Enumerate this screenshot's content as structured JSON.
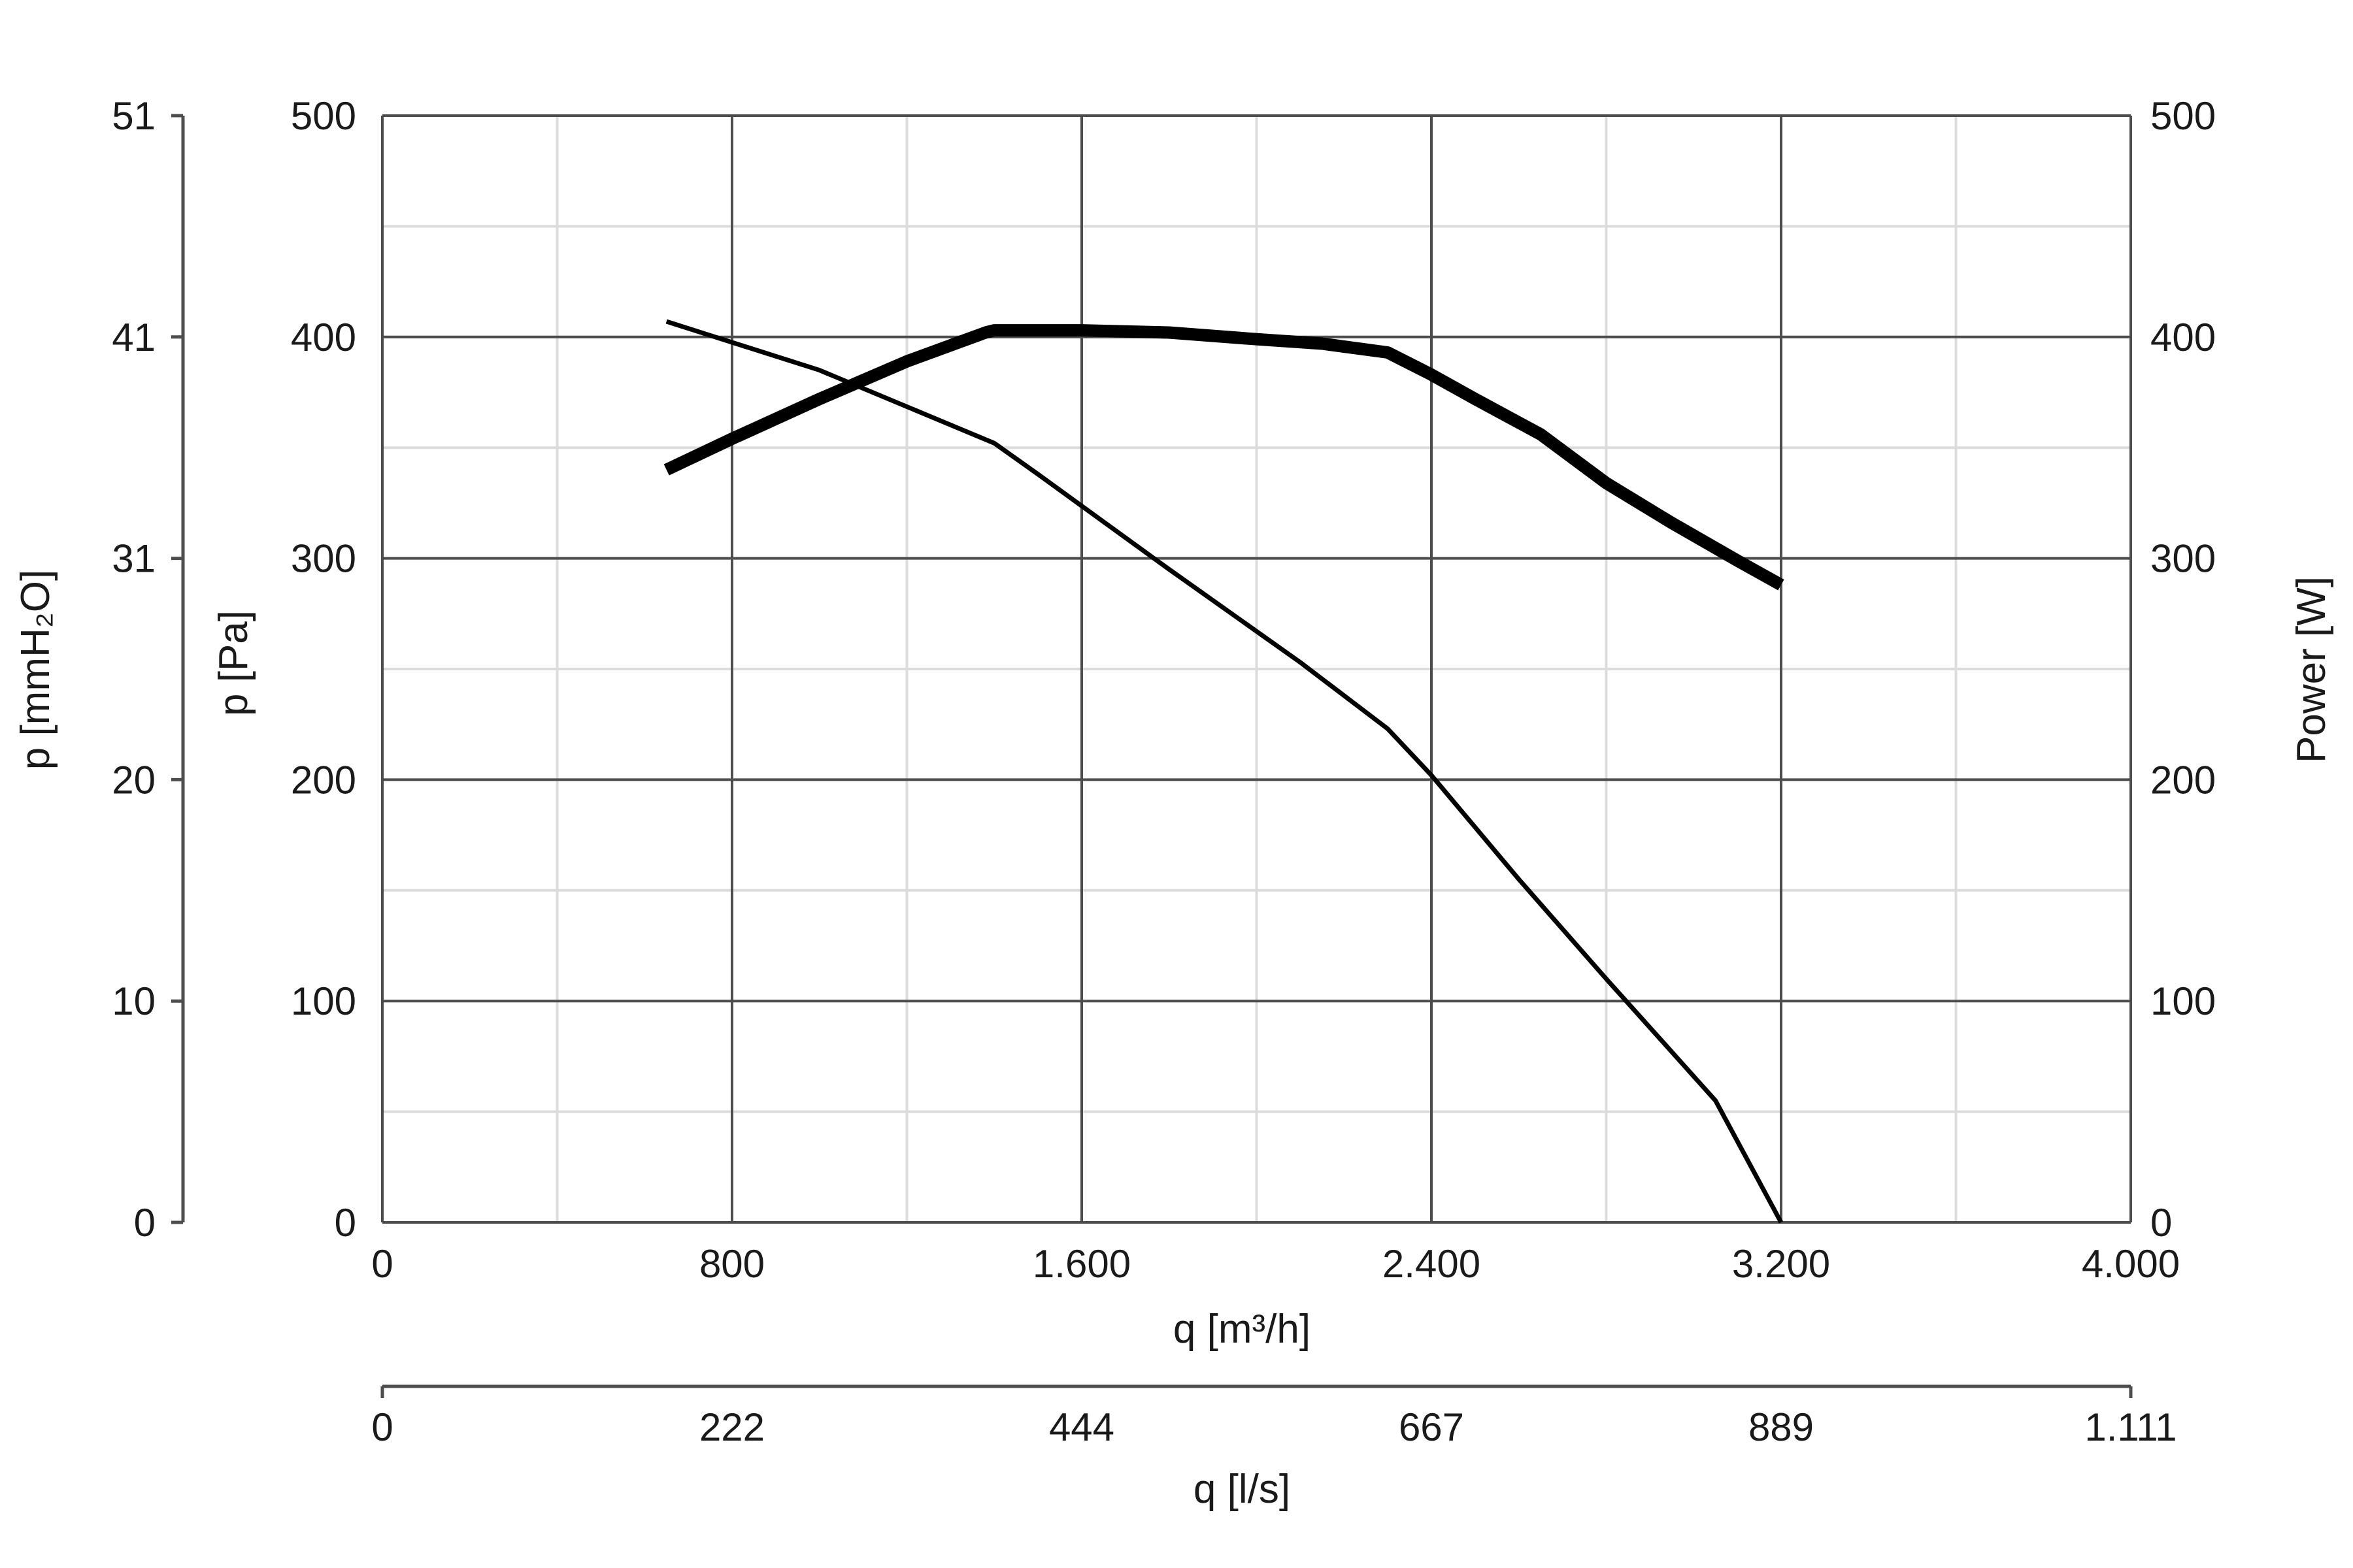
{
  "chart_data": {
    "type": "line",
    "x_axis": {
      "label": "q [m³/h]",
      "range": [
        0,
        4000
      ],
      "ticks": [
        0,
        800,
        1600,
        2400,
        3200,
        4000
      ],
      "tick_labels": [
        "0",
        "800",
        "1.600",
        "2.400",
        "3.200",
        "4.000"
      ],
      "minor_step": 400
    },
    "x_axis_secondary": {
      "label": "q [l/s]",
      "tick_labels": [
        "0",
        "222",
        "444",
        "667",
        "889",
        "1.111"
      ]
    },
    "y_axis_left": {
      "label": "p [Pa]",
      "range": [
        0,
        500
      ],
      "ticks": [
        0,
        100,
        200,
        300,
        400,
        500
      ],
      "tick_labels": [
        "0",
        "100",
        "200",
        "300",
        "400",
        "500"
      ],
      "minor_step": 50
    },
    "y_axis_left_outer": {
      "label": "p [mmH₂O]",
      "tick_labels": [
        "0",
        "10",
        "20",
        "31",
        "41",
        "51"
      ]
    },
    "y_axis_right": {
      "label": "Power [W]",
      "range": [
        0,
        500
      ],
      "tick_labels": [
        "0",
        "100",
        "200",
        "300",
        "400",
        "500"
      ]
    },
    "grid": true,
    "series": [
      {
        "axis": "left",
        "color": "#000000",
        "weight": "thin",
        "points": [
          [
            650,
            407
          ],
          [
            1000,
            385
          ],
          [
            1400,
            352
          ],
          [
            1500,
            338
          ],
          [
            1800,
            295
          ],
          [
            2100,
            253
          ],
          [
            2300,
            223
          ],
          [
            2400,
            202
          ],
          [
            2600,
            155
          ],
          [
            2800,
            110
          ],
          [
            2950,
            77
          ],
          [
            3050,
            55
          ],
          [
            3200,
            0
          ]
        ]
      },
      {
        "axis": "right",
        "color": "#000000",
        "weight": "thick",
        "points": [
          [
            650,
            340
          ],
          [
            800,
            354
          ],
          [
            1000,
            372
          ],
          [
            1200,
            389
          ],
          [
            1380,
            402
          ],
          [
            1400,
            403
          ],
          [
            1600,
            403
          ],
          [
            1800,
            402
          ],
          [
            2000,
            399
          ],
          [
            2150,
            397
          ],
          [
            2300,
            393
          ],
          [
            2400,
            383
          ],
          [
            2500,
            372
          ],
          [
            2650,
            356
          ],
          [
            2800,
            334
          ],
          [
            2950,
            316
          ],
          [
            3100,
            299
          ],
          [
            3200,
            288
          ]
        ]
      }
    ]
  }
}
